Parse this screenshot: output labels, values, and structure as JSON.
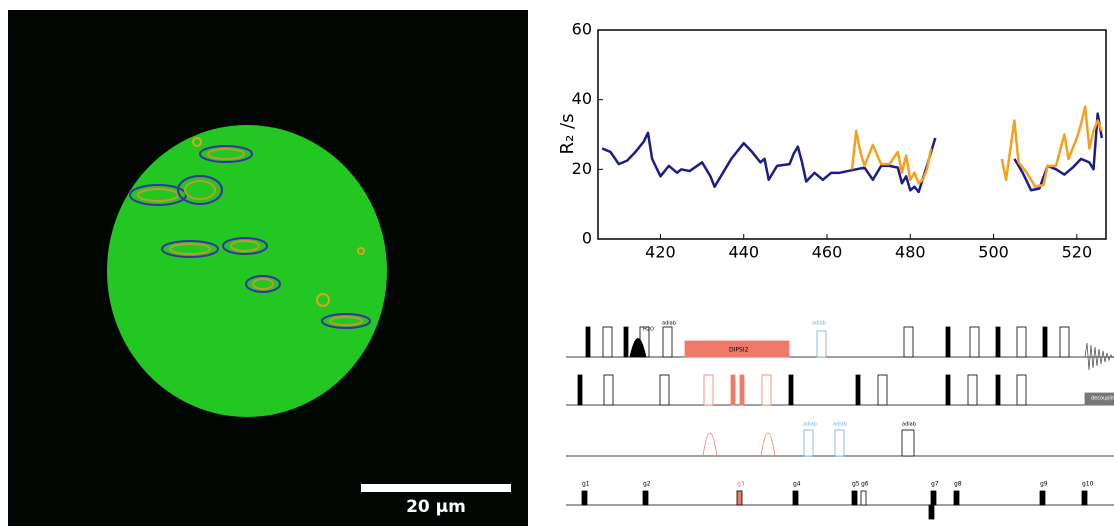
{
  "chart_data": {
    "type": "line",
    "y_label": "R₂ /s",
    "xlim": [
      405,
      527
    ],
    "xticks": [
      420,
      440,
      460,
      480,
      500,
      520
    ],
    "ylim": [
      0,
      60
    ],
    "yticks": [
      0,
      20,
      40,
      60
    ],
    "grid": false,
    "series": [
      {
        "color": "#1c1c8a",
        "x": [
          406,
          408,
          410,
          412,
          414,
          416,
          417,
          418,
          420,
          422,
          424,
          425,
          427,
          430,
          432,
          433,
          435,
          437,
          440,
          442,
          444,
          445,
          446,
          448,
          451,
          452,
          453,
          454,
          455,
          457,
          459,
          461,
          463,
          465,
          467,
          469,
          471,
          473,
          475,
          477,
          478,
          479,
          480,
          481,
          482,
          484,
          486,
          null,
          505,
          507,
          509,
          511,
          513,
          515,
          517,
          519,
          521,
          523,
          524,
          525,
          526
        ],
        "values": [
          26,
          25,
          21.5,
          22.5,
          25,
          28,
          30.5,
          23,
          18,
          21,
          19,
          20,
          19.5,
          22,
          18,
          15,
          19,
          23,
          27.5,
          25,
          22,
          23,
          17,
          21,
          21.5,
          24.5,
          26.5,
          22,
          16.5,
          19,
          17,
          19,
          19,
          19.5,
          20,
          20.5,
          17,
          21,
          21,
          20.5,
          16,
          18,
          14,
          15,
          13.5,
          21,
          29,
          null,
          23,
          19,
          14,
          14.5,
          21,
          20,
          18.5,
          20.5,
          23,
          22,
          20,
          36,
          29
        ]
      },
      {
        "color": "#f5a01f",
        "x": [
          466,
          467,
          468,
          469,
          471,
          473,
          475,
          477,
          478,
          479,
          480,
          481,
          482,
          483,
          484,
          485,
          null,
          502,
          503,
          505,
          506,
          508,
          510,
          512,
          513,
          515,
          517,
          518,
          520,
          521,
          522,
          523,
          524,
          525,
          526
        ],
        "values": [
          20,
          31,
          25,
          21,
          27,
          21.5,
          21.5,
          25,
          19,
          24,
          17,
          19,
          16,
          17,
          20,
          26,
          null,
          23,
          17,
          34,
          22,
          19,
          15,
          15.5,
          21,
          21,
          30,
          23,
          29,
          33,
          38,
          26,
          31,
          34,
          31
        ]
      }
    ]
  },
  "image": {
    "scale_bar_label": "20 µm"
  },
  "pulse_sequence": {
    "labels": [
      "H2O",
      "adiab",
      "DIPSI2",
      "adiab",
      "adiab",
      "adiab",
      "adiab",
      "decoupling"
    ],
    "gradients": [
      "g1",
      "g2",
      "g3",
      "g4",
      "g5",
      "g6",
      "g7",
      "g8",
      "g9",
      "g10"
    ]
  }
}
